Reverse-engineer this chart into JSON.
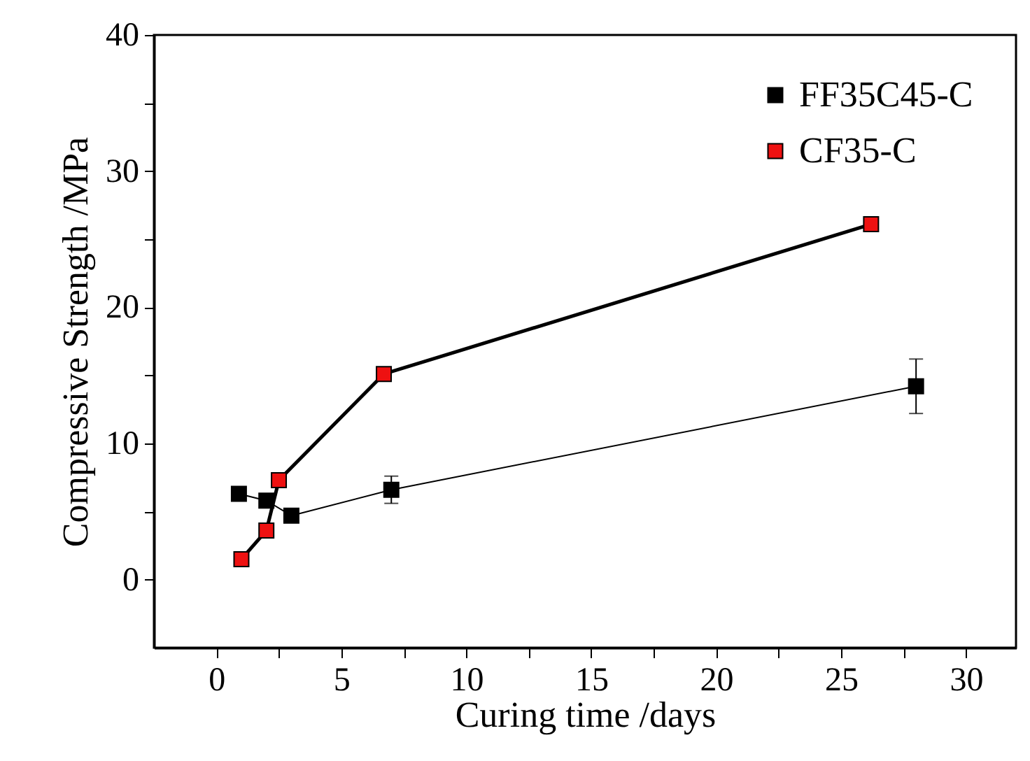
{
  "chart_data": {
    "type": "line",
    "xlabel": "Curing time /days",
    "ylabel": "Compressive Strength /MPa",
    "xlim": [
      -2.5,
      32
    ],
    "ylim": [
      -5,
      40
    ],
    "xticks": [
      0,
      {
        "value": 2.5,
        "label": null
      },
      5,
      {
        "value": 7.5,
        "label": null
      },
      10,
      {
        "value": 12.5,
        "label": null
      },
      15,
      {
        "value": 17.5,
        "label": null
      },
      20,
      {
        "value": 22.5,
        "label": null
      },
      25,
      {
        "value": 27.5,
        "label": null
      },
      30
    ],
    "yticks": [
      0,
      {
        "value": 5,
        "label": null
      },
      10,
      {
        "value": 15,
        "label": null
      },
      20,
      {
        "value": 25,
        "label": null
      },
      30,
      {
        "value": 35,
        "label": null
      },
      40
    ],
    "grid": false,
    "legend": "top right",
    "marker": "square",
    "line_style": "solid",
    "series": [
      {
        "name": "FF35C45-C",
        "color": "#000000",
        "x": [
          0.9,
          2,
          3,
          7,
          28
        ],
        "values": [
          6.3,
          5.8,
          4.7,
          6.6,
          14.2
        ],
        "errors": [
          null,
          null,
          0.5,
          1,
          2
        ]
      },
      {
        "name": "CF35-C",
        "color": "#ee1111",
        "x": [
          1,
          2,
          2.5,
          6.7,
          26.2
        ],
        "values": [
          1.5,
          3.6,
          7.3,
          15.1,
          26.1
        ]
      }
    ]
  }
}
